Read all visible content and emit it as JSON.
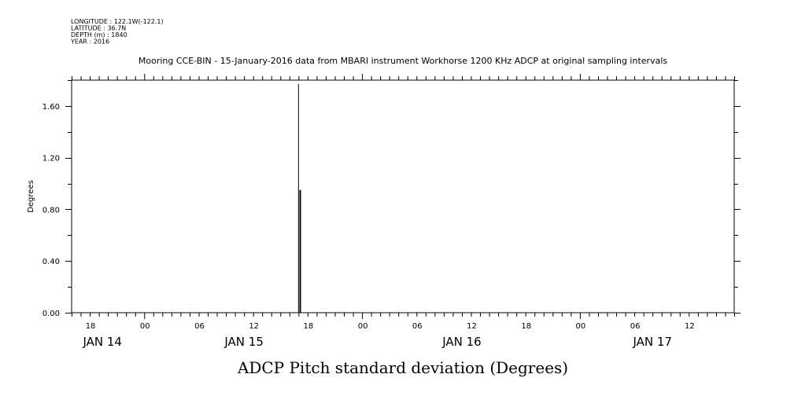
{
  "chart_data": {
    "type": "line",
    "meta": [
      "LONGITUDE : 122.1W(-122.1)",
      "LATITUDE : 36.7N",
      "DEPTH (m) : 1840",
      "YEAR : 2016"
    ],
    "title": "Mooring CCE-BIN - 15-January-2016 data from MBARI instrument Workhorse 1200 KHz ADCP at original sampling intervals",
    "xlabel": "ADCP Pitch standard deviation (Degrees)",
    "ylabel": "Degrees",
    "xrange_hours_from_jan14_00": [
      16,
      89
    ],
    "ylim": [
      0,
      1.8
    ],
    "yticks": [
      "0.00",
      "0.40",
      "0.80",
      "1.20",
      "1.60"
    ],
    "xtick_labels": [
      "18",
      "00",
      "06",
      "12",
      "18",
      "00",
      "06",
      "12",
      "18",
      "00",
      "06",
      "12"
    ],
    "day_labels": [
      "JAN 14",
      "JAN 15",
      "JAN 16",
      "JAN 17"
    ],
    "series": [
      {
        "name": "pitch_std",
        "x_hours_from_jan14_00": [
          41.0,
          41.0,
          41.1,
          41.1
        ],
        "values": [
          0.0,
          1.77,
          0.0,
          0.95
        ]
      }
    ]
  }
}
